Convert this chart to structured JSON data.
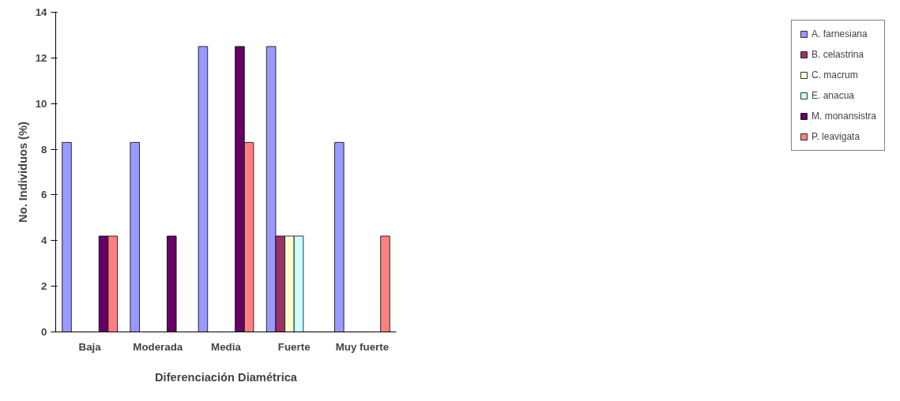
{
  "chart_data": {
    "type": "bar",
    "xlabel": "Diferenciación Diamétrica",
    "ylabel": "No. Individuos (%)",
    "categories": [
      "Baja",
      "Moderada",
      "Media",
      "Fuerte",
      "Muy fuerte"
    ],
    "ylim": [
      0,
      14
    ],
    "yticks": [
      0,
      2,
      4,
      6,
      8,
      10,
      12,
      14
    ],
    "grid": false,
    "legend": "right",
    "series": [
      {
        "name": "A. farnesiana",
        "color": "#9999ff",
        "values": [
          8.3,
          8.3,
          12.5,
          12.5,
          8.3
        ]
      },
      {
        "name": "B. celastrina",
        "color": "#993366",
        "values": [
          null,
          null,
          null,
          4.2,
          null
        ]
      },
      {
        "name": "C. macrum",
        "color": "#ffffcc",
        "values": [
          null,
          null,
          null,
          4.2,
          null
        ]
      },
      {
        "name": "E. anacua",
        "color": "#ccffff",
        "values": [
          null,
          null,
          null,
          4.2,
          null
        ]
      },
      {
        "name": "M. monansistra",
        "color": "#660066",
        "values": [
          4.2,
          4.2,
          12.5,
          null,
          null
        ]
      },
      {
        "name": "P. leavigata",
        "color": "#ff8080",
        "values": [
          4.2,
          null,
          8.3,
          null,
          4.2
        ]
      }
    ]
  }
}
